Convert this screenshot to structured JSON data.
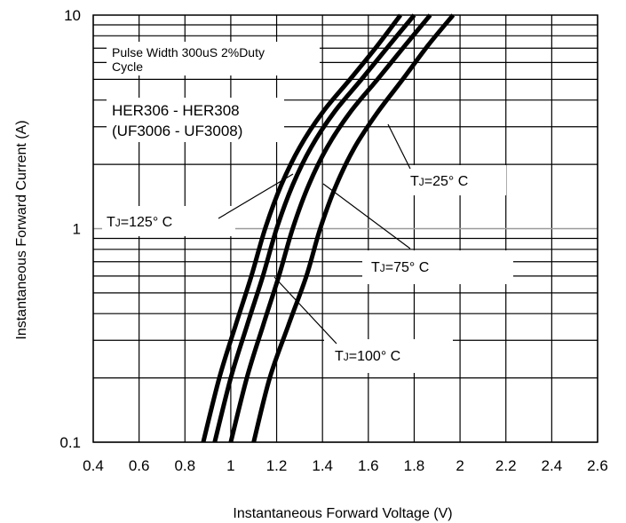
{
  "chart_data": {
    "type": "line",
    "xlabel": "Instantaneous Forward Voltage (V)",
    "ylabel": "Instantaneous Forward Current (A)",
    "xlim": [
      0.4,
      2.6
    ],
    "ylim": [
      0.1,
      10
    ],
    "y_scale": "log",
    "x_ticks": [
      "0.4",
      "0.6",
      "0.8",
      "1",
      "1.2",
      "1.4",
      "1.6",
      "1.8",
      "2",
      "2.2",
      "2.4",
      "2.6"
    ],
    "y_ticks": [
      "0.1",
      "1",
      "10"
    ],
    "grid": true,
    "series": [
      {
        "name": "TJ=125° C",
        "color": "#000000",
        "x": [
          0.88,
          0.95,
          1.02,
          1.09,
          1.15,
          1.22,
          1.3,
          1.4,
          1.52,
          1.64,
          1.74
        ],
        "y": [
          0.1,
          0.2,
          0.35,
          0.6,
          1.0,
          1.6,
          2.4,
          3.5,
          5.0,
          7.2,
          10
        ]
      },
      {
        "name": "TJ=100° C",
        "color": "#000000",
        "x": [
          0.93,
          1.0,
          1.07,
          1.14,
          1.2,
          1.27,
          1.35,
          1.45,
          1.57,
          1.69,
          1.8
        ],
        "y": [
          0.1,
          0.2,
          0.35,
          0.6,
          1.0,
          1.6,
          2.4,
          3.5,
          5.0,
          7.2,
          10
        ]
      },
      {
        "name": "TJ=75° C",
        "color": "#000000",
        "x": [
          1.0,
          1.07,
          1.14,
          1.21,
          1.27,
          1.34,
          1.42,
          1.52,
          1.64,
          1.76,
          1.87
        ],
        "y": [
          0.1,
          0.2,
          0.35,
          0.6,
          1.0,
          1.6,
          2.4,
          3.5,
          5.0,
          7.2,
          10
        ]
      },
      {
        "name": "TJ=25° C",
        "color": "#000000",
        "x": [
          1.1,
          1.17,
          1.25,
          1.33,
          1.39,
          1.46,
          1.54,
          1.64,
          1.75,
          1.86,
          1.97
        ],
        "y": [
          0.1,
          0.2,
          0.35,
          0.6,
          1.0,
          1.6,
          2.4,
          3.5,
          5.0,
          7.2,
          10
        ]
      }
    ],
    "annotations": {
      "pulse_line1": "Pulse Width 300uS 2%Duty",
      "pulse_line2": "Cycle",
      "part_line1": "HER306 - HER308",
      "part_line2": "(UF3006 - UF3008)"
    },
    "callouts": [
      {
        "prefix": "T",
        "sub": "J",
        "suffix": "=25° C",
        "series": "TJ=25° C"
      },
      {
        "prefix": "T",
        "sub": "J",
        "suffix": "=75° C",
        "series": "TJ=75° C"
      },
      {
        "prefix": "T",
        "sub": "J",
        "suffix": "=100° C",
        "series": "TJ=100° C"
      },
      {
        "prefix": "T",
        "sub": "J",
        "suffix": "=125° C",
        "series": "TJ=125° C"
      }
    ]
  }
}
